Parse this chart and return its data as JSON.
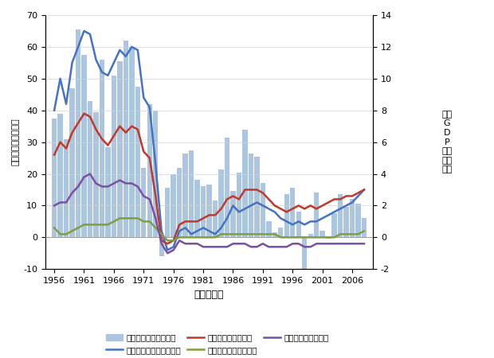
{
  "years": [
    1956,
    1957,
    1958,
    1959,
    1960,
    1961,
    1962,
    1963,
    1964,
    1965,
    1966,
    1967,
    1968,
    1969,
    1970,
    1971,
    1972,
    1973,
    1974,
    1975,
    1976,
    1977,
    1978,
    1979,
    1980,
    1981,
    1982,
    1983,
    1984,
    1985,
    1986,
    1987,
    1988,
    1989,
    1990,
    1991,
    1992,
    1993,
    1994,
    1995,
    1996,
    1997,
    1998,
    1999,
    2000,
    2001,
    2002,
    2003,
    2004,
    2005,
    2006,
    2007,
    2008
  ],
  "gdp_growth": [
    7.5,
    7.8,
    6.2,
    9.4,
    13.1,
    11.5,
    8.6,
    7.9,
    11.2,
    5.7,
    10.2,
    11.1,
    12.4,
    12.0,
    9.5,
    4.4,
    8.4,
    8.0,
    -1.2,
    3.1,
    4.0,
    4.4,
    5.3,
    5.5,
    3.6,
    3.2,
    3.3,
    2.3,
    4.3,
    6.3,
    2.9,
    4.1,
    6.8,
    5.3,
    5.1,
    3.4,
    1.0,
    0.3,
    0.6,
    2.7,
    3.1,
    1.6,
    -2.0,
    0.2,
    2.8,
    0.4,
    -0.1,
    1.5,
    2.7,
    1.9,
    2.4,
    2.1,
    1.2
  ],
  "metro3": [
    40,
    50,
    42,
    55,
    60,
    65,
    64,
    56,
    52,
    51,
    55,
    59,
    57,
    60,
    59,
    44,
    41,
    23,
    2,
    -4,
    -3,
    2,
    3,
    1,
    2,
    3,
    2,
    1,
    3,
    6,
    10,
    8,
    9,
    10,
    11,
    10,
    9,
    8,
    6,
    5,
    4,
    5,
    4,
    5,
    5,
    6,
    7,
    8,
    9,
    10,
    11,
    13,
    15
  ],
  "tokyo": [
    26,
    30,
    28,
    33,
    36,
    39,
    38,
    34,
    31,
    29,
    32,
    35,
    33,
    35,
    34,
    27,
    25,
    13,
    -1,
    -2,
    -1,
    4,
    5,
    5,
    5,
    6,
    7,
    7,
    9,
    12,
    13,
    12,
    15,
    15,
    15,
    14,
    12,
    10,
    9,
    8,
    9,
    10,
    9,
    10,
    9,
    10,
    11,
    12,
    12,
    13,
    13,
    14,
    15
  ],
  "nagoya": [
    3,
    1,
    1,
    2,
    3,
    4,
    4,
    4,
    4,
    4,
    5,
    6,
    6,
    6,
    6,
    5,
    5,
    3,
    1,
    -1,
    -1,
    0,
    0,
    0,
    0,
    0,
    0,
    0,
    1,
    1,
    1,
    1,
    1,
    1,
    1,
    1,
    1,
    1,
    0,
    0,
    0,
    0,
    0,
    0,
    0,
    0,
    0,
    0,
    1,
    1,
    1,
    1,
    2
  ],
  "osaka": [
    10,
    11,
    11,
    14,
    16,
    19,
    20,
    17,
    16,
    16,
    17,
    18,
    17,
    17,
    16,
    13,
    12,
    6,
    -2,
    -5,
    -4,
    -1,
    -2,
    -2,
    -2,
    -3,
    -3,
    -3,
    -3,
    -3,
    -2,
    -2,
    -2,
    -3,
    -3,
    -2,
    -3,
    -3,
    -3,
    -3,
    -2,
    -2,
    -3,
    -3,
    -2,
    -2,
    -2,
    -2,
    -2,
    -2,
    -2,
    -2,
    -2
  ],
  "bar_color": "#adc6e0",
  "line_metro3_color": "#4472c4",
  "line_tokyo_color": "#c0392b",
  "line_nagoya_color": "#7f9f3f",
  "line_osaka_color": "#7b4fa6",
  "ylim_left": [
    -10,
    70
  ],
  "ylim_right": [
    -2.0,
    14.0
  ],
  "xlabel": "年（暦年）",
  "ylabel_left": "転入超過数（万人）",
  "ylabel_right": "実質\nG\nD\nP\n成長\n率（\n％）",
  "xticks": [
    1956,
    1961,
    1966,
    1971,
    1976,
    1981,
    1986,
    1991,
    1996,
    2001,
    2006
  ],
  "yticks_left": [
    -10,
    0,
    10,
    20,
    30,
    40,
    50,
    60,
    70
  ],
  "yticks_right": [
    -2.0,
    0.0,
    2.0,
    4.0,
    6.0,
    8.0,
    10.0,
    12.0,
    14.0
  ],
  "legend_row1": [
    "ＧＤＰ成長率（実質）",
    "三大都市圈への転入超過",
    "東京圈への転入超過"
  ],
  "legend_row2": [
    "名古屋圈への転入超過",
    "大阪圈への転入超過"
  ]
}
